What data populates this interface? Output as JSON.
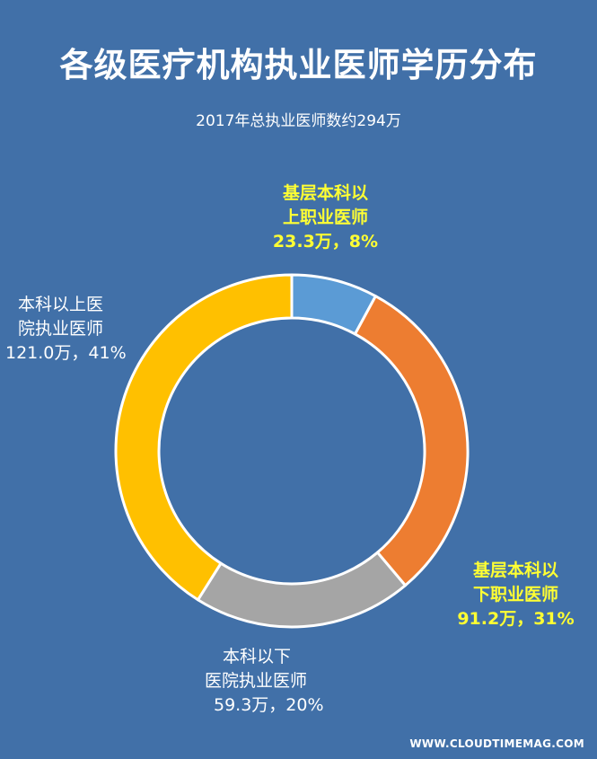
{
  "title": "各级医疗机构执业医师学历分布",
  "subtitle": "2017年总执业医师数约294万",
  "footer": "WWW.CLOUDTIMEMAG.COM",
  "chart_data": {
    "type": "pie",
    "title": "各级医疗机构执业医师学历分布",
    "subtitle": "2017年总执业医师数约294万",
    "categories": [
      "基层本科以上职业医师",
      "基层本科以下职业医师",
      "本科以下医院执业医师",
      "本科以上医院执业医师"
    ],
    "values": [
      23.3,
      91.2,
      59.3,
      121.0
    ],
    "percents": [
      8,
      31,
      20,
      41
    ],
    "colors": [
      "#5B9BD5",
      "#ED7D31",
      "#A5A5A5",
      "#FFC000"
    ],
    "labels": [
      {
        "line1": "基层本科以",
        "line2": "上职业医师",
        "line3": "23.3万，8%"
      },
      {
        "line1": "基层本科以",
        "line2": "下职业医师",
        "line3": "91.2万，31%"
      },
      {
        "line1": "本科以下",
        "line2": "医院执业医师",
        "line3": "59.3万，20%"
      },
      {
        "line1": "本科以上医",
        "line2": "院执业医师",
        "line3": "121.0万，41%"
      }
    ]
  }
}
